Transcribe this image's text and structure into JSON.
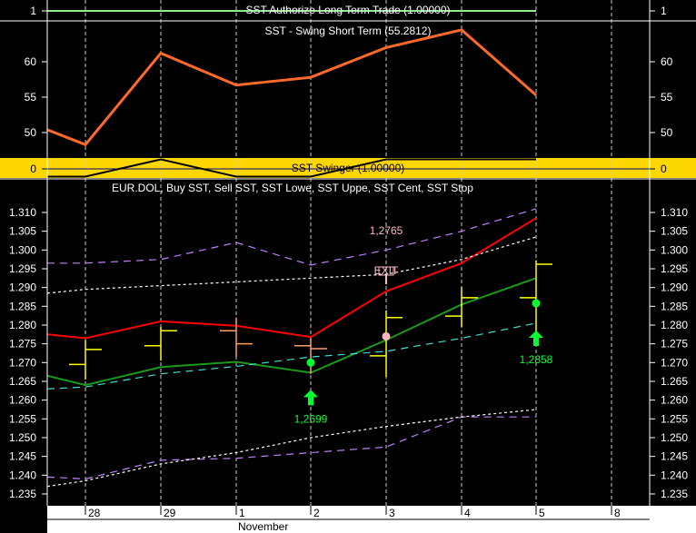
{
  "chart_data": [
    {
      "type": "line",
      "title": "SST Authorize Long Term Trade (1.00000)",
      "y_ticks": [
        "1"
      ],
      "values": [
        1,
        1,
        1,
        1,
        1,
        1,
        1,
        1
      ],
      "color": "#90ee90"
    },
    {
      "type": "line",
      "title": "SST - Swing Short Term (55.2812)",
      "y_ticks": [
        60,
        55,
        50
      ],
      "values": [
        50.4,
        48.3,
        61.2,
        56.7,
        57.8,
        62.0,
        64.5,
        55.3
      ],
      "color": "#ff6a2a"
    },
    {
      "type": "line",
      "title": "SST Swinger (1.00000)",
      "y_ticks": [
        0
      ],
      "values": [
        -1,
        -1,
        1,
        -1,
        -1,
        1,
        1,
        1
      ],
      "background": "#ffd700",
      "color": "#000000"
    },
    {
      "type": "ohlc",
      "title": "EUR.DOL, Buy SST, Sell SST, SST Lowe, SST Uppe, SST Cent, SST Stop",
      "ylim": [
        1.233,
        1.313
      ],
      "y_ticks": [
        "1.310",
        "1.305",
        "1.300",
        "1.295",
        "1.290",
        "1.285",
        "1.280",
        "1.275",
        "1.270",
        "1.265",
        "1.260",
        "1.255",
        "1.250",
        "1.245",
        "1.240",
        "1.235"
      ],
      "x_ticks": [
        "28",
        "29",
        "1",
        "2",
        "3",
        "4",
        "5",
        "8"
      ],
      "x_month_label": "November",
      "bars": [
        {
          "date": "28",
          "open": 1.2695,
          "high": 1.276,
          "low": 1.2655,
          "close": 1.2735,
          "color": "#ffff00"
        },
        {
          "date": "29",
          "open": 1.2745,
          "high": 1.2795,
          "low": 1.2705,
          "close": 1.2785,
          "color": "#ffff00"
        },
        {
          "date": "1",
          "open": 1.2785,
          "high": 1.282,
          "low": 1.2715,
          "close": 1.275,
          "color": "#ffa060"
        },
        {
          "date": "2",
          "open": 1.2745,
          "high": 1.2766,
          "low": 1.267,
          "close": 1.2737,
          "color": "#ffa060"
        },
        {
          "date": "3",
          "open": 1.2718,
          "high": 1.2839,
          "low": 1.2662,
          "close": 1.282,
          "color": "#ffff00"
        },
        {
          "date": "4",
          "open": 1.2824,
          "high": 1.29,
          "low": 1.2795,
          "close": 1.2873,
          "color": "#ffff00"
        },
        {
          "date": "5",
          "open": 1.2873,
          "high": 1.2972,
          "low": 1.2764,
          "close": 1.2962,
          "color": "#ffff00"
        }
      ],
      "series": [
        {
          "values": [
            1.2775,
            1.2765,
            1.281,
            1.2798,
            1.2768,
            1.289,
            1.2965,
            1.3085
          ],
          "color": "#ff0000",
          "style": "solid"
        },
        {
          "values": [
            1.2665,
            1.264,
            1.2688,
            1.2702,
            1.2673,
            1.276,
            1.2855,
            1.2925
          ],
          "color": "#1a9a1a",
          "style": "solid"
        },
        {
          "values": [
            1.263,
            1.2635,
            1.267,
            1.269,
            1.2715,
            1.273,
            1.2765,
            1.2805
          ],
          "color": "#40e0d0",
          "style": "dashed"
        },
        {
          "values": [
            1.2965,
            1.2965,
            1.2975,
            1.302,
            1.296,
            1.3,
            1.305,
            1.311
          ],
          "color": "#c080ff",
          "style": "dashed"
        },
        {
          "values": [
            1.2885,
            1.2895,
            1.2905,
            1.2915,
            1.2925,
            1.2935,
            1.2975,
            1.3035
          ],
          "color": "#ffffff",
          "style": "dotted"
        },
        {
          "values": [
            1.2395,
            1.239,
            1.244,
            1.2445,
            1.246,
            1.2475,
            1.2555,
            1.2555
          ],
          "color": "#c080ff",
          "style": "dashed"
        },
        {
          "values": [
            1.237,
            1.2385,
            1.243,
            1.246,
            1.25,
            1.253,
            1.2555,
            1.2575
          ],
          "color": "#ffffff",
          "style": "dotted"
        }
      ],
      "signals": [
        {
          "date": "2",
          "type": "buy",
          "dot_value": 1.27,
          "label": "1,2699",
          "color": "#00ff30"
        },
        {
          "date": "3",
          "type": "exit",
          "dot_value": 1.277,
          "label": "1,2765",
          "exit_label": "EXIT",
          "color": "#ffb6c1"
        },
        {
          "date": "5",
          "type": "buy",
          "dot_value": 1.2858,
          "label": "1,2858",
          "color": "#00ff30"
        }
      ]
    }
  ]
}
